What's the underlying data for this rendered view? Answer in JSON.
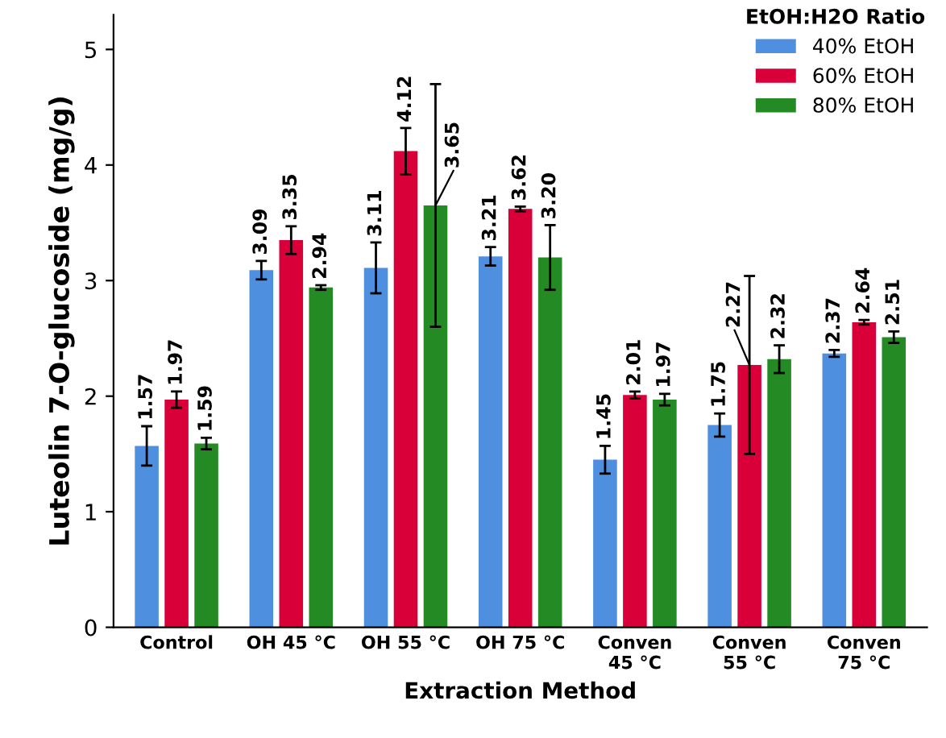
{
  "chart_data": {
    "type": "bar",
    "xlabel": "Extraction Method",
    "ylabel": "Luteolin 7-O-glucoside (mg/g)",
    "legend_title": "EtOH:H2O Ratio",
    "legend": "top right",
    "grid": false,
    "categories": [
      "Control",
      "OH 45 °C",
      "OH 55 °C",
      "OH 75 °C",
      "Conven\n45 °C",
      "Conven\n55 °C",
      "Conven\n75 °C"
    ],
    "ylim": [
      0,
      5.3
    ],
    "yticks": [
      0,
      1,
      2,
      3,
      4,
      5
    ],
    "series": [
      {
        "name": "40% EtOH",
        "color": "#4f8fdf",
        "values": [
          1.57,
          3.09,
          3.11,
          3.21,
          1.45,
          1.75,
          2.37
        ],
        "errors": [
          0.17,
          0.08,
          0.22,
          0.08,
          0.12,
          0.1,
          0.03
        ],
        "value_labels": [
          "1.57",
          "3.09",
          "3.11",
          "3.21",
          "1.45",
          "1.75",
          "2.37"
        ]
      },
      {
        "name": "60% EtOH",
        "color": "#d9003a",
        "values": [
          1.97,
          3.35,
          4.12,
          3.62,
          2.01,
          2.27,
          2.64
        ],
        "errors": [
          0.07,
          0.12,
          0.2,
          0.02,
          0.03,
          0.77,
          0.02
        ],
        "value_labels": [
          "1.97",
          "3.35",
          "4.12",
          "3.62",
          "2.01",
          "2.27",
          "2.64"
        ]
      },
      {
        "name": "80% EtOH",
        "color": "#248a24",
        "values": [
          1.59,
          2.94,
          3.65,
          3.2,
          1.97,
          2.32,
          2.51
        ],
        "errors": [
          0.05,
          0.02,
          1.05,
          0.28,
          0.05,
          0.12,
          0.05
        ],
        "value_labels": [
          "1.59",
          "2.94",
          "3.65",
          "3.20",
          "1.97",
          "2.32",
          "2.51"
        ]
      }
    ]
  }
}
